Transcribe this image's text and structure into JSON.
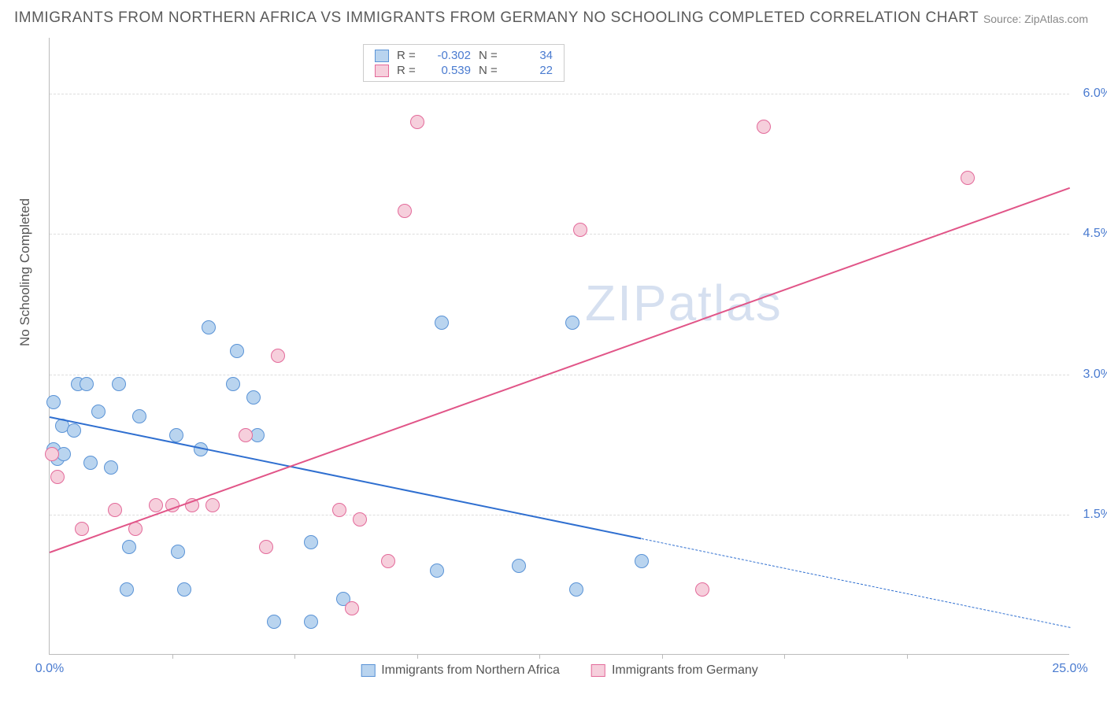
{
  "title": "IMMIGRANTS FROM NORTHERN AFRICA VS IMMIGRANTS FROM GERMANY NO SCHOOLING COMPLETED CORRELATION CHART",
  "source_label": "Source:",
  "source_value": "ZipAtlas.com",
  "y_axis_title": "No Schooling Completed",
  "chart": {
    "type": "scatter",
    "xlim": [
      0.0,
      25.0
    ],
    "ylim": [
      0.0,
      6.6
    ],
    "x_ticks_labeled": [
      {
        "v": 0.0,
        "label": "0.0%"
      },
      {
        "v": 25.0,
        "label": "25.0%"
      }
    ],
    "x_ticks_minor": [
      3.0,
      6.0,
      9.0,
      12.0,
      15.0,
      18.0,
      21.0
    ],
    "y_ticks": [
      {
        "v": 1.5,
        "label": "1.5%"
      },
      {
        "v": 3.0,
        "label": "3.0%"
      },
      {
        "v": 4.5,
        "label": "4.5%"
      },
      {
        "v": 6.0,
        "label": "6.0%"
      }
    ],
    "background_color": "#ffffff",
    "grid_color": "#dddddd",
    "title_fontsize": 19,
    "label_fontsize": 16,
    "series": [
      {
        "name": "Immigrants from Northern Africa",
        "fill": "#b9d4ef",
        "stroke": "#5a93d6",
        "line_color": "#2f6fd0",
        "marker_r": 9,
        "R": "-0.302",
        "N": "34",
        "trend": {
          "x1": 0.0,
          "y1": 2.55,
          "x2": 14.5,
          "y2": 1.25,
          "dash_x2": 25.0,
          "dash_y2": 0.3
        },
        "points": [
          [
            0.1,
            2.7
          ],
          [
            0.1,
            2.2
          ],
          [
            0.2,
            2.1
          ],
          [
            0.3,
            2.45
          ],
          [
            0.35,
            2.15
          ],
          [
            0.6,
            2.4
          ],
          [
            0.7,
            2.9
          ],
          [
            0.9,
            2.9
          ],
          [
            1.0,
            2.05
          ],
          [
            1.2,
            2.6
          ],
          [
            1.5,
            2.0
          ],
          [
            1.7,
            2.9
          ],
          [
            1.9,
            0.7
          ],
          [
            1.95,
            1.15
          ],
          [
            2.2,
            2.55
          ],
          [
            3.1,
            2.35
          ],
          [
            3.15,
            1.1
          ],
          [
            3.3,
            0.7
          ],
          [
            3.7,
            2.2
          ],
          [
            3.9,
            3.5
          ],
          [
            4.5,
            2.9
          ],
          [
            4.6,
            3.25
          ],
          [
            5.0,
            2.75
          ],
          [
            5.1,
            2.35
          ],
          [
            5.5,
            0.35
          ],
          [
            6.4,
            1.2
          ],
          [
            6.4,
            0.35
          ],
          [
            7.2,
            0.6
          ],
          [
            9.5,
            0.9
          ],
          [
            9.6,
            3.55
          ],
          [
            11.5,
            0.95
          ],
          [
            12.8,
            3.55
          ],
          [
            12.9,
            0.7
          ],
          [
            14.5,
            1.0
          ]
        ]
      },
      {
        "name": "Immigrants from Germany",
        "fill": "#f6cfdc",
        "stroke": "#e36a9a",
        "line_color": "#e15588",
        "marker_r": 9,
        "R": "0.539",
        "N": "22",
        "trend": {
          "x1": 0.0,
          "y1": 1.1,
          "x2": 25.0,
          "y2": 5.0
        },
        "points": [
          [
            0.05,
            2.15
          ],
          [
            0.2,
            1.9
          ],
          [
            0.8,
            1.35
          ],
          [
            1.6,
            1.55
          ],
          [
            2.1,
            1.35
          ],
          [
            2.6,
            1.6
          ],
          [
            3.0,
            1.6
          ],
          [
            3.5,
            1.6
          ],
          [
            4.0,
            1.6
          ],
          [
            4.8,
            2.35
          ],
          [
            5.3,
            1.15
          ],
          [
            5.6,
            3.2
          ],
          [
            7.1,
            1.55
          ],
          [
            7.4,
            0.5
          ],
          [
            7.6,
            1.45
          ],
          [
            8.3,
            1.0
          ],
          [
            8.7,
            4.75
          ],
          [
            9.0,
            5.7
          ],
          [
            13.0,
            4.55
          ],
          [
            16.0,
            0.7
          ],
          [
            17.5,
            5.65
          ],
          [
            22.5,
            5.1
          ]
        ]
      }
    ]
  },
  "watermark": {
    "zip": "ZIP",
    "atlas": "atlas"
  }
}
